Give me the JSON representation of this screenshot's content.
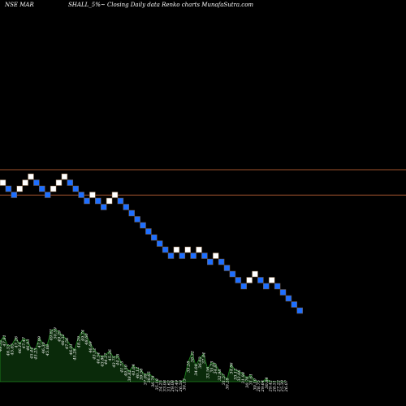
{
  "header": {
    "left": "NSE MAR",
    "right": "SHALL_5%~  Closing Daily data  Renko  charts MunafaSutra.com"
  },
  "colors": {
    "background": "#000000",
    "up_brick": "#ffffff",
    "down_brick": "#1e6fff",
    "brick_edge": "#7a5a3a",
    "reference_line": "#a0522d",
    "volume_fill": "#0a2a0a",
    "volume_stroke": "#1f8a1f",
    "volume_text": "#ffffff"
  },
  "chart_data": {
    "type": "renko",
    "title": "NSE MAR SHALL_5%~ Closing Daily data Renko charts MunafaSutra.com",
    "xlabel": "",
    "ylabel": "",
    "grid": false,
    "legend": "none",
    "reference_lines": [
      {
        "level": 31.5
      },
      {
        "level": 29.0
      }
    ],
    "bricks": [
      {
        "dir": "up",
        "level": 30.5
      },
      {
        "dir": "down",
        "level": 29.9
      },
      {
        "dir": "down",
        "level": 29.3
      },
      {
        "dir": "up",
        "level": 29.9
      },
      {
        "dir": "up",
        "level": 30.5
      },
      {
        "dir": "up",
        "level": 31.1
      },
      {
        "dir": "down",
        "level": 30.5
      },
      {
        "dir": "down",
        "level": 29.9
      },
      {
        "dir": "down",
        "level": 29.3
      },
      {
        "dir": "up",
        "level": 29.9
      },
      {
        "dir": "up",
        "level": 30.5
      },
      {
        "dir": "up",
        "level": 31.1
      },
      {
        "dir": "down",
        "level": 30.5
      },
      {
        "dir": "down",
        "level": 29.9
      },
      {
        "dir": "down",
        "level": 29.3
      },
      {
        "dir": "down",
        "level": 28.7
      },
      {
        "dir": "up",
        "level": 29.3
      },
      {
        "dir": "down",
        "level": 28.7
      },
      {
        "dir": "down",
        "level": 28.1
      },
      {
        "dir": "up",
        "level": 28.7
      },
      {
        "dir": "up",
        "level": 29.3
      },
      {
        "dir": "down",
        "level": 28.7
      },
      {
        "dir": "down",
        "level": 28.1
      },
      {
        "dir": "down",
        "level": 27.5
      },
      {
        "dir": "down",
        "level": 26.9
      },
      {
        "dir": "down",
        "level": 26.3
      },
      {
        "dir": "down",
        "level": 25.7
      },
      {
        "dir": "down",
        "level": 25.1
      },
      {
        "dir": "down",
        "level": 24.5
      },
      {
        "dir": "down",
        "level": 23.9
      },
      {
        "dir": "down",
        "level": 23.3
      },
      {
        "dir": "up",
        "level": 23.9
      },
      {
        "dir": "down",
        "level": 23.3
      },
      {
        "dir": "up",
        "level": 23.9
      },
      {
        "dir": "down",
        "level": 23.3
      },
      {
        "dir": "up",
        "level": 23.9
      },
      {
        "dir": "down",
        "level": 23.3
      },
      {
        "dir": "down",
        "level": 22.7
      },
      {
        "dir": "up",
        "level": 23.3
      },
      {
        "dir": "down",
        "level": 22.7
      },
      {
        "dir": "down",
        "level": 22.1
      },
      {
        "dir": "down",
        "level": 21.5
      },
      {
        "dir": "down",
        "level": 20.9
      },
      {
        "dir": "down",
        "level": 20.3
      },
      {
        "dir": "up",
        "level": 20.9
      },
      {
        "dir": "up",
        "level": 21.5
      },
      {
        "dir": "down",
        "level": 20.9
      },
      {
        "dir": "down",
        "level": 20.3
      },
      {
        "dir": "up",
        "level": 20.9
      },
      {
        "dir": "down",
        "level": 20.3
      },
      {
        "dir": "down",
        "level": 19.7
      },
      {
        "dir": "down",
        "level": 19.1
      },
      {
        "dir": "down",
        "level": 18.5
      },
      {
        "dir": "down",
        "level": 17.9
      }
    ],
    "volume_labels": [
      "48.52",
      "47.81",
      "46.53",
      "45.85",
      "47.26",
      "46.16",
      "47.47",
      "46.93",
      "45.44",
      "45.23",
      "47.89",
      "46.30",
      "45.68",
      "49.82",
      "50.59",
      "49.29",
      "48.32",
      "47.56",
      "46.01",
      "45.28",
      "48.29",
      "49.74",
      "48.60",
      "46.69",
      "45.52",
      "44.54",
      "43.86",
      "44.37",
      "45.26",
      "43.75",
      "44.35",
      "41.75",
      "40.50",
      "38.82",
      "41.04",
      "40.12",
      "39.56",
      "37.89",
      "38.65",
      "36.79",
      "35.18",
      "34.25",
      "33.08",
      "31.62",
      "29.08",
      "27.49",
      "26.58",
      "30.13",
      "35.28",
      "38.32",
      "34.08",
      "36.62",
      "37.84",
      "33.56",
      "35.23",
      "34.87",
      "32.98",
      "31.57",
      "30.28",
      "34.86",
      "33.12",
      "32.66",
      "31.98",
      "30.70",
      "31.61",
      "30.10",
      "28.75",
      "29.64",
      "30.84",
      "29.42",
      "28.51",
      "27.22",
      "25.30",
      "26.07"
    ],
    "volume_levels": [
      0.55,
      0.62,
      0.49,
      0.5,
      0.6,
      0.52,
      0.59,
      0.56,
      0.45,
      0.44,
      0.6,
      0.52,
      0.49,
      0.7,
      0.72,
      0.68,
      0.63,
      0.58,
      0.5,
      0.43,
      0.6,
      0.69,
      0.64,
      0.53,
      0.44,
      0.38,
      0.34,
      0.37,
      0.42,
      0.33,
      0.36,
      0.26,
      0.21,
      0.14,
      0.22,
      0.18,
      0.16,
      0.09,
      0.12,
      0.06,
      0.02,
      0.0,
      0.0,
      0.0,
      0.0,
      0.0,
      0.0,
      0.02,
      0.26,
      0.4,
      0.22,
      0.32,
      0.38,
      0.18,
      0.26,
      0.24,
      0.15,
      0.09,
      0.03,
      0.24,
      0.16,
      0.14,
      0.11,
      0.05,
      0.09,
      0.02,
      0.0,
      0.0,
      0.04,
      0.0,
      0.0,
      0.0,
      0.0,
      0.0
    ]
  }
}
